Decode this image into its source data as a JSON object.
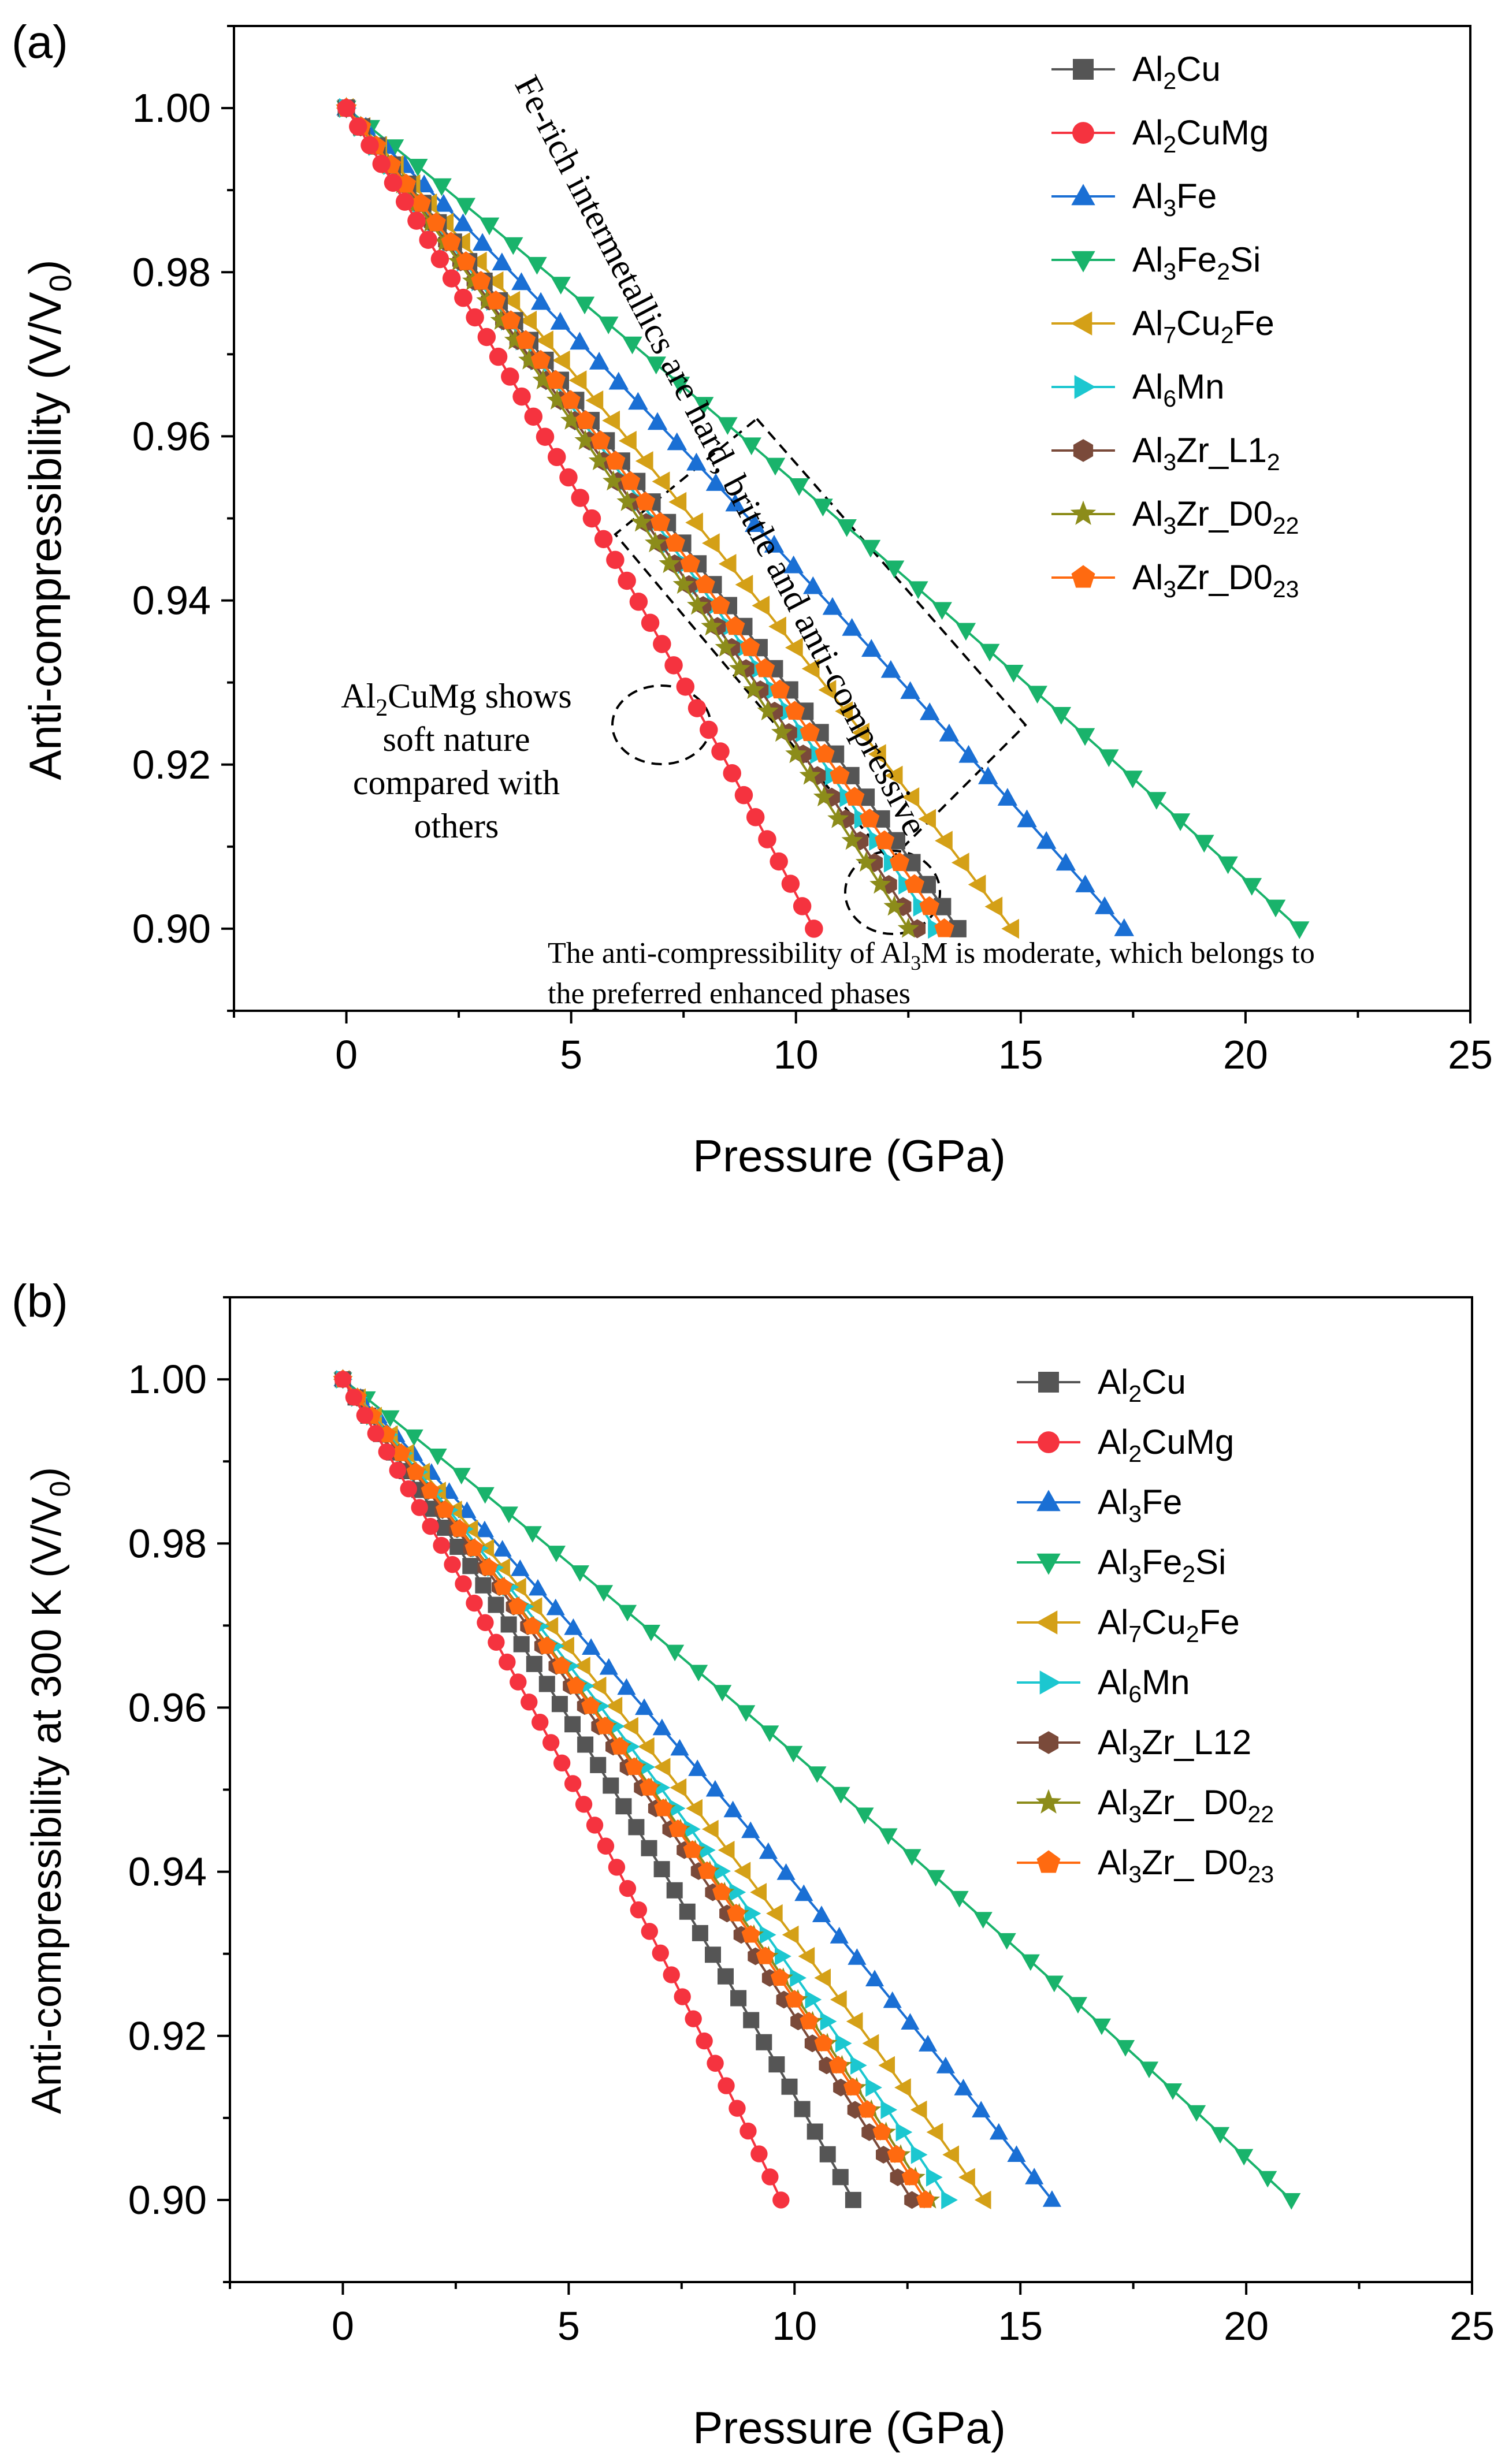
{
  "chart_data": [
    {
      "panel_label": "(a)",
      "type": "line",
      "xlabel": "Pressure (GPa)",
      "ylabel": "Anti-compressibility (V/V",
      "ylabel_sub": "0",
      "ylabel_end": ")",
      "xlim": [
        -2.5,
        25
      ],
      "ylim": [
        0.89,
        1.01
      ],
      "xticks": [
        0,
        5,
        10,
        15,
        20,
        25
      ],
      "yticks": [
        0.9,
        0.92,
        0.94,
        0.96,
        0.98,
        1.0
      ],
      "xtick_labels": [
        "0",
        "5",
        "10",
        "15",
        "20",
        "25"
      ],
      "ytick_labels": [
        "0.90",
        "0.92",
        "0.94",
        "0.96",
        "0.98",
        "1.00"
      ],
      "legend_position": "top-right",
      "series": [
        {
          "name": "Al2Cu",
          "label_parts": [
            [
              "Al",
              ""
            ],
            [
              "2",
              "sub"
            ],
            [
              "Cu",
              ""
            ]
          ],
          "color": "#555555",
          "marker": "square",
          "p_end": 13.6,
          "curvature": 0.08
        },
        {
          "name": "Al2CuMg",
          "label_parts": [
            [
              "Al",
              ""
            ],
            [
              "2",
              "sub"
            ],
            [
              "CuMg",
              ""
            ]
          ],
          "color": "#f5333f",
          "marker": "circle",
          "p_end": 10.4,
          "curvature": 0.1
        },
        {
          "name": "Al3Fe",
          "label_parts": [
            [
              "Al",
              ""
            ],
            [
              "3",
              "sub"
            ],
            [
              "Fe",
              ""
            ]
          ],
          "color": "#1a6fd4",
          "marker": "triangle-up",
          "p_end": 17.3,
          "curvature": 0.07
        },
        {
          "name": "Al3Fe2Si",
          "label_parts": [
            [
              "Al",
              ""
            ],
            [
              "3",
              "sub"
            ],
            [
              "Fe",
              ""
            ],
            [
              "2",
              "sub"
            ],
            [
              "Si",
              ""
            ]
          ],
          "color": "#19b36b",
          "marker": "triangle-down",
          "p_end": 21.2,
          "curvature": 0.06
        },
        {
          "name": "Al7Cu2Fe",
          "label_parts": [
            [
              "Al",
              ""
            ],
            [
              "7",
              "sub"
            ],
            [
              "Cu",
              ""
            ],
            [
              "2",
              "sub"
            ],
            [
              "Fe",
              ""
            ]
          ],
          "color": "#d4a017",
          "marker": "triangle-left",
          "p_end": 14.8,
          "curvature": 0.08
        },
        {
          "name": "Al6Mn",
          "label_parts": [
            [
              "Al",
              ""
            ],
            [
              "6",
              "sub"
            ],
            [
              "Mn",
              ""
            ]
          ],
          "color": "#1cc7d0",
          "marker": "triangle-right",
          "p_end": 13.1,
          "curvature": 0.08
        },
        {
          "name": "Al3Zr_L12",
          "label_parts": [
            [
              "Al",
              ""
            ],
            [
              "3",
              "sub"
            ],
            [
              "Zr_L1",
              ""
            ],
            [
              "2",
              "sub"
            ]
          ],
          "color": "#7a4a3a",
          "marker": "hexagon",
          "p_end": 12.7,
          "curvature": 0.08
        },
        {
          "name": "Al3Zr_D022",
          "label_parts": [
            [
              "Al",
              ""
            ],
            [
              "3",
              "sub"
            ],
            [
              "Zr_D0",
              ""
            ],
            [
              "22",
              "sub"
            ]
          ],
          "color": "#8c8c1a",
          "marker": "star",
          "p_end": 12.5,
          "curvature": 0.08
        },
        {
          "name": "Al3Zr_D023",
          "label_parts": [
            [
              "Al",
              ""
            ],
            [
              "3",
              "sub"
            ],
            [
              "Zr_D0",
              ""
            ],
            [
              "23",
              "sub"
            ]
          ],
          "color": "#ff6a10",
          "marker": "pentagon",
          "p_end": 13.3,
          "curvature": 0.08
        }
      ],
      "annotations": {
        "fe_rich": "Fe-rich intermetallics are hard, brittle and anti-compressive",
        "soft_line1": "Al",
        "soft_line1_sub": "2",
        "soft_line1_end": "CuMg shows",
        "soft_line2": "soft nature",
        "soft_line3": "compared with",
        "soft_line4": "others",
        "al3m_line1_a": "The anti-compressibility of Al",
        "al3m_line1_sub": "3",
        "al3m_line1_b": "M is moderate, which belongs to",
        "al3m_line2": "the preferred enhanced phases"
      }
    },
    {
      "panel_label": "(b)",
      "type": "line",
      "xlabel": "Pressure (GPa)",
      "ylabel": "Anti-compressibility at 300 K (V/V",
      "ylabel_sub": "0",
      "ylabel_end": ")",
      "xlim": [
        -2.5,
        25
      ],
      "ylim": [
        0.89,
        1.01
      ],
      "xticks": [
        0,
        5,
        10,
        15,
        20,
        25
      ],
      "yticks": [
        0.9,
        0.92,
        0.94,
        0.96,
        0.98,
        1.0
      ],
      "xtick_labels": [
        "0",
        "5",
        "10",
        "15",
        "20",
        "25"
      ],
      "ytick_labels": [
        "0.90",
        "0.92",
        "0.94",
        "0.96",
        "0.98",
        "1.00"
      ],
      "legend_position": "top-right",
      "series": [
        {
          "name": "Al2Cu",
          "label_parts": [
            [
              "Al",
              ""
            ],
            [
              "2",
              "sub"
            ],
            [
              "Cu",
              ""
            ]
          ],
          "color": "#555555",
          "marker": "square",
          "p_end": 11.3,
          "curvature": 0.12
        },
        {
          "name": "Al2CuMg",
          "label_parts": [
            [
              "Al",
              ""
            ],
            [
              "2",
              "sub"
            ],
            [
              "CuMg",
              ""
            ]
          ],
          "color": "#f5333f",
          "marker": "circle",
          "p_end": 9.7,
          "curvature": 0.13
        },
        {
          "name": "Al3Fe",
          "label_parts": [
            [
              "Al",
              ""
            ],
            [
              "3",
              "sub"
            ],
            [
              "Fe",
              ""
            ]
          ],
          "color": "#1a6fd4",
          "marker": "triangle-up",
          "p_end": 15.7,
          "curvature": 0.1
        },
        {
          "name": "Al3Fe2Si",
          "label_parts": [
            [
              "Al",
              ""
            ],
            [
              "3",
              "sub"
            ],
            [
              "Fe",
              ""
            ],
            [
              "2",
              "sub"
            ],
            [
              "Si",
              ""
            ]
          ],
          "color": "#19b36b",
          "marker": "triangle-down",
          "p_end": 21.0,
          "curvature": 0.08
        },
        {
          "name": "Al7Cu2Fe",
          "label_parts": [
            [
              "Al",
              ""
            ],
            [
              "7",
              "sub"
            ],
            [
              "Cu",
              ""
            ],
            [
              "2",
              "sub"
            ],
            [
              "Fe",
              ""
            ]
          ],
          "color": "#d4a017",
          "marker": "triangle-left",
          "p_end": 14.2,
          "curvature": 0.11
        },
        {
          "name": "Al6Mn",
          "label_parts": [
            [
              "Al",
              ""
            ],
            [
              "6",
              "sub"
            ],
            [
              "Mn",
              ""
            ]
          ],
          "color": "#1cc7d0",
          "marker": "triangle-right",
          "p_end": 13.4,
          "curvature": 0.11
        },
        {
          "name": "Al3Zr_L12",
          "label_parts": [
            [
              "Al",
              ""
            ],
            [
              "3",
              "sub"
            ],
            [
              "Zr_L12",
              ""
            ]
          ],
          "color": "#7a4a3a",
          "marker": "hexagon",
          "p_end": 12.6,
          "curvature": 0.11
        },
        {
          "name": "Al3Zr_D022",
          "label_parts": [
            [
              "Al",
              ""
            ],
            [
              "3",
              "sub"
            ],
            [
              "Zr_ D0",
              ""
            ],
            [
              "22",
              "sub"
            ]
          ],
          "color": "#8c8c1a",
          "marker": "star",
          "p_end": 13.0,
          "curvature": 0.11
        },
        {
          "name": "Al3Zr_D023",
          "label_parts": [
            [
              "Al",
              ""
            ],
            [
              "3",
              "sub"
            ],
            [
              "Zr_ D0",
              ""
            ],
            [
              "23",
              "sub"
            ]
          ],
          "color": "#ff6a10",
          "marker": "pentagon",
          "p_end": 12.9,
          "curvature": 0.11
        }
      ]
    }
  ]
}
